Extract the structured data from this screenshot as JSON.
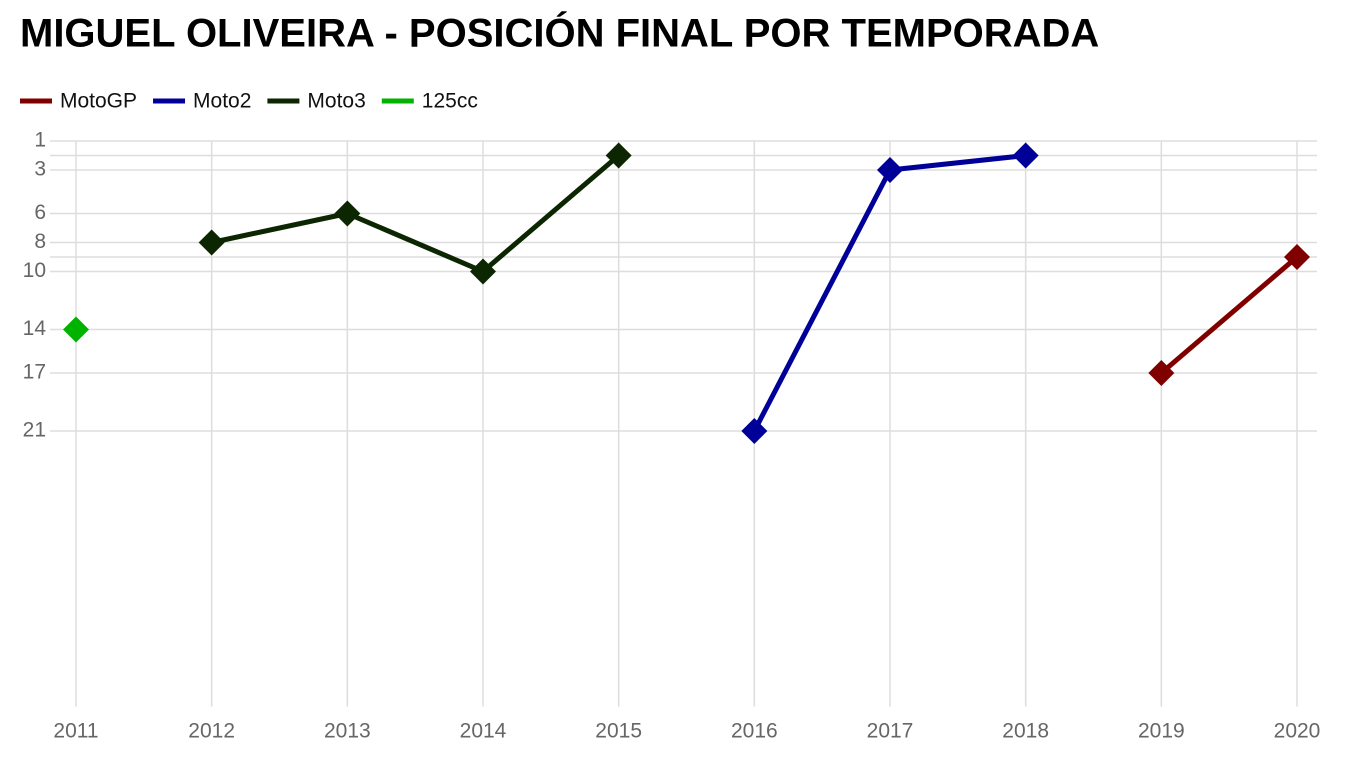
{
  "chart_data": {
    "type": "line",
    "title": "MIGUEL OLIVEIRA - POSICIÓN FINAL POR TEMPORADA",
    "x": [
      2011,
      2012,
      2013,
      2014,
      2015,
      2016,
      2017,
      2018,
      2019,
      2020
    ],
    "series": [
      {
        "name": "MotoGP",
        "color": "#800000",
        "values": [
          null,
          null,
          null,
          null,
          null,
          null,
          null,
          null,
          17,
          9
        ]
      },
      {
        "name": "Moto2",
        "color": "#000099",
        "values": [
          null,
          null,
          null,
          null,
          null,
          21,
          3,
          2,
          null,
          null
        ]
      },
      {
        "name": "Moto3",
        "color": "#0b2600",
        "values": [
          null,
          8,
          6,
          10,
          2,
          null,
          null,
          null,
          null,
          null
        ]
      },
      {
        "name": "125cc",
        "color": "#00b300",
        "values": [
          14,
          null,
          null,
          null,
          null,
          null,
          null,
          null,
          null,
          null
        ]
      }
    ],
    "xlim": [
      2011,
      2020
    ],
    "xticks": [
      2011,
      2012,
      2013,
      2014,
      2015,
      2016,
      2017,
      2018,
      2019,
      2020
    ],
    "ylim": [
      40,
      1
    ],
    "yticks": [
      1,
      3,
      6,
      8,
      10,
      14,
      17,
      21
    ],
    "ygrid_extra": [
      2,
      9
    ],
    "grid": true,
    "legend": "top-left"
  }
}
